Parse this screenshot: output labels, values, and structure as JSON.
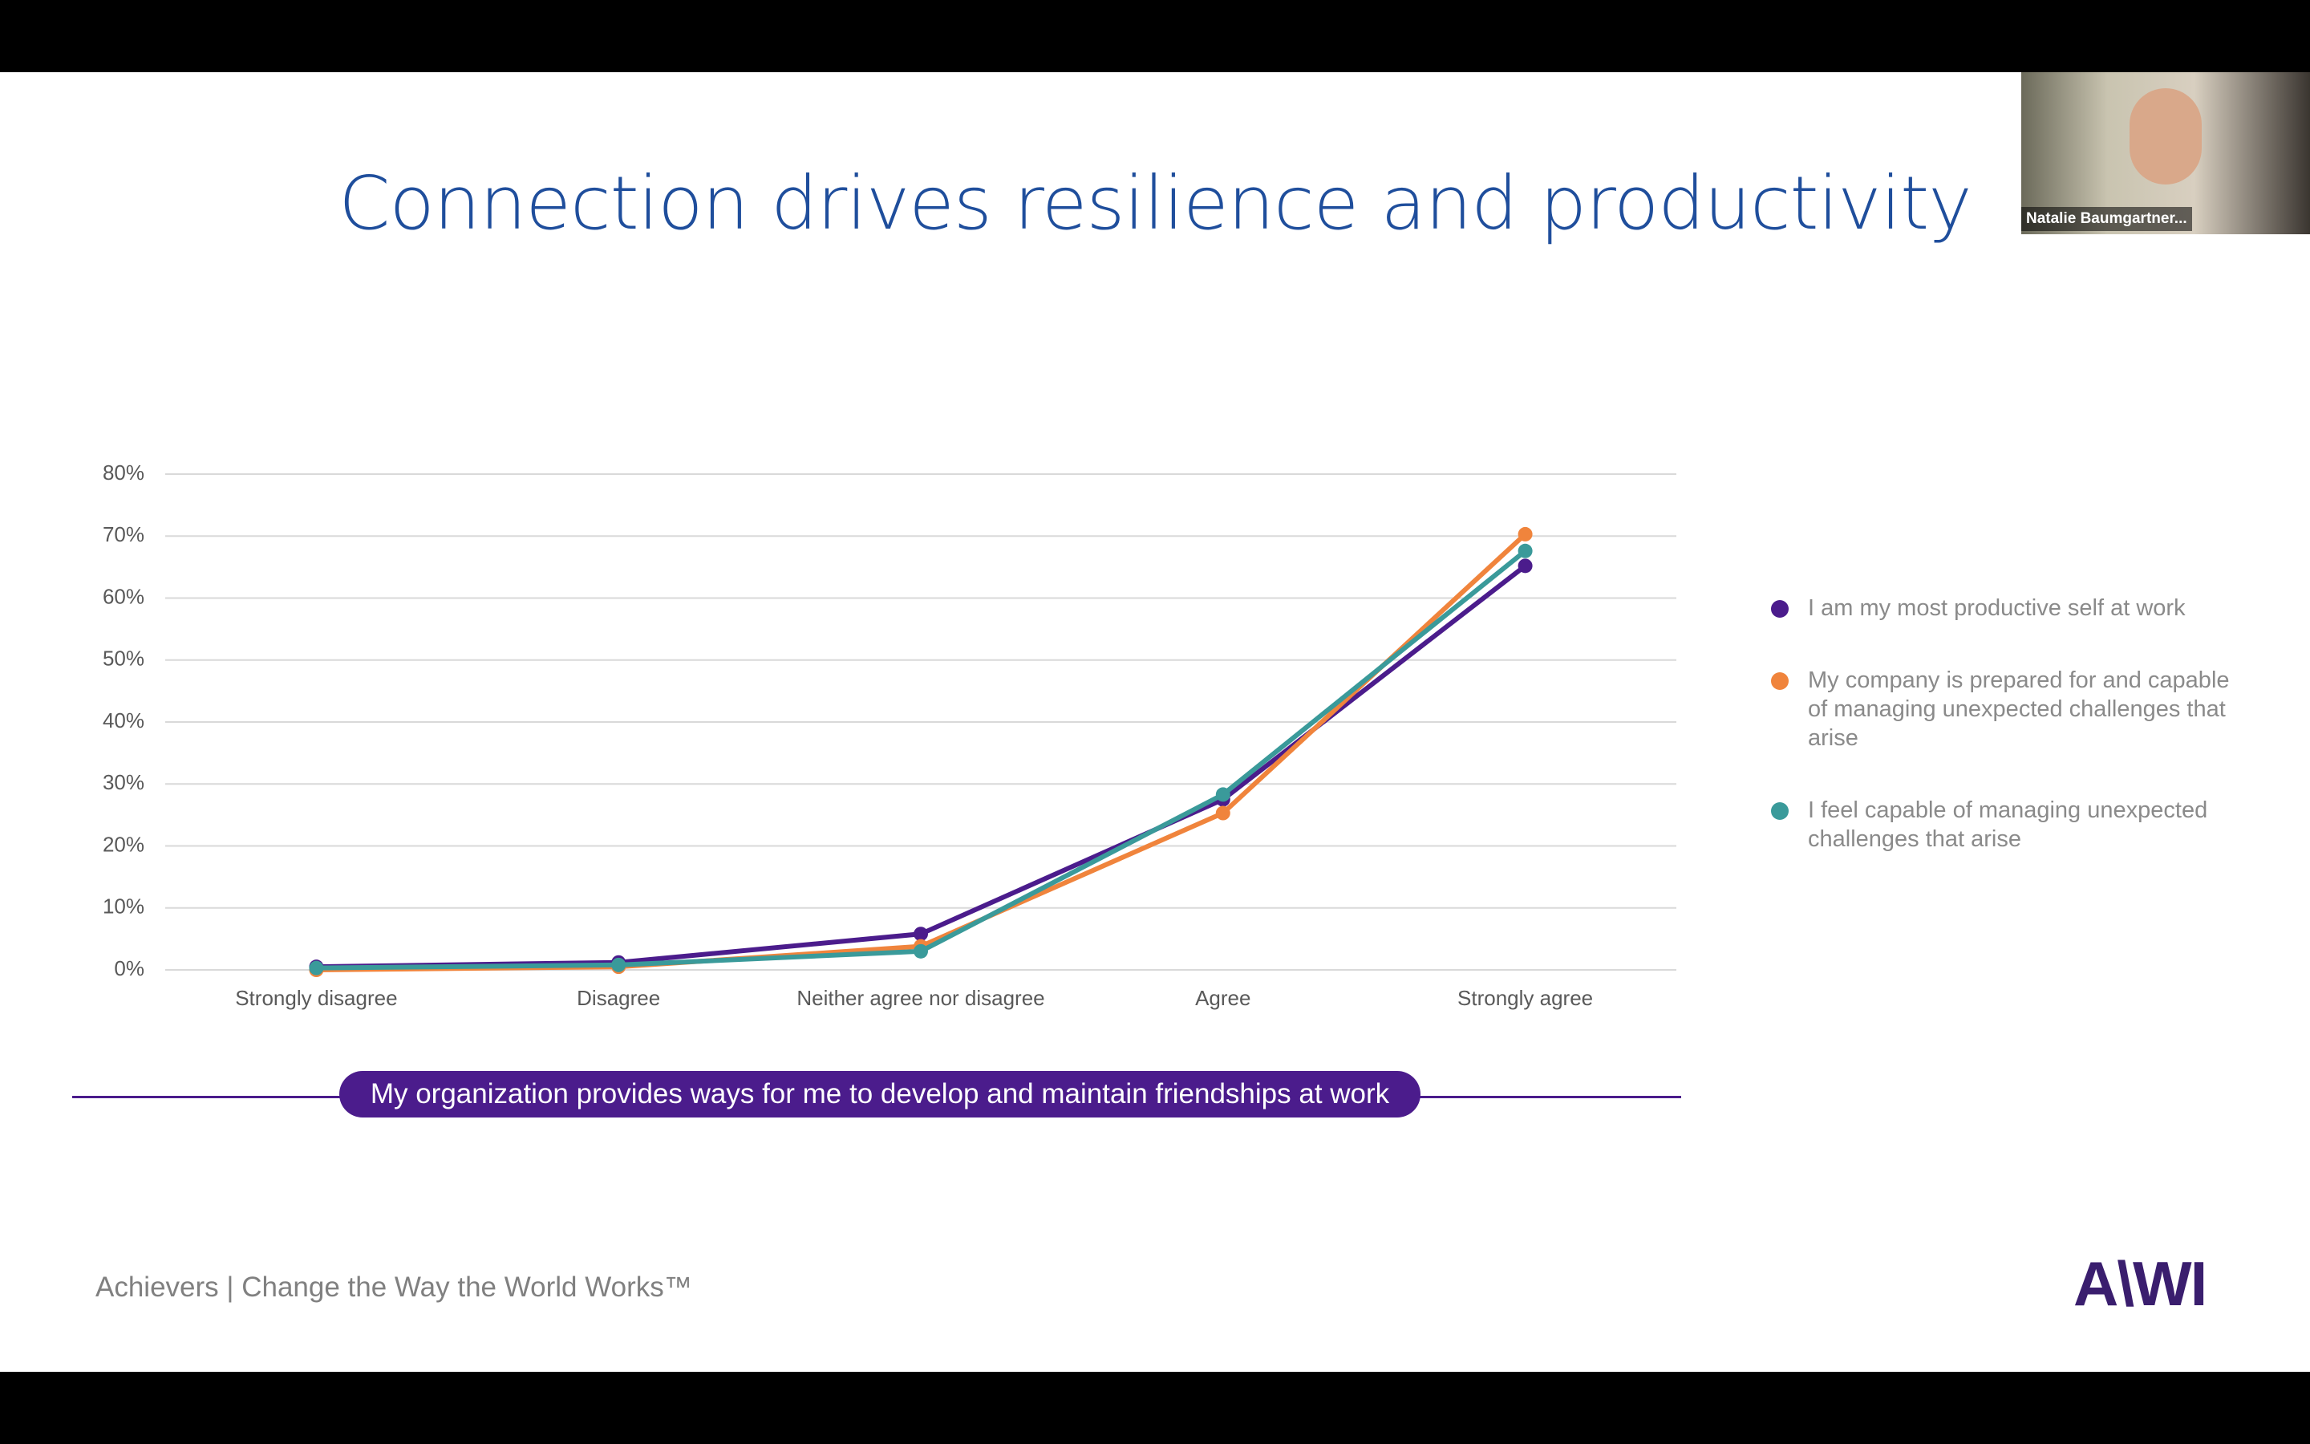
{
  "slide": {
    "title": "Connection drives resilience and productivity",
    "footer": "Achievers | Change the Way the World Works™",
    "logo": "A\\WI",
    "banner": "My organization provides ways for me to develop and maintain friendships at work",
    "webcam_name": "Natalie Baumgartner..."
  },
  "chart_data": {
    "type": "line",
    "categories": [
      "Strongly disagree",
      "Disagree",
      "Neither agree nor disagree",
      "Agree",
      "Strongly agree"
    ],
    "series": [
      {
        "name": "I am my most productive self at work",
        "color": "#4b1c8c",
        "values": [
          0.5,
          1.2,
          5.8,
          27.5,
          65.2
        ]
      },
      {
        "name": "My company is prepared for and capable of managing unexpected challenges that arise",
        "color": "#f0843c",
        "values": [
          0,
          0.5,
          3.8,
          25.3,
          70.3
        ]
      },
      {
        "name": "I feel capable of managing unexpected challenges that arise",
        "color": "#3a9a9a",
        "values": [
          0.3,
          0.8,
          3.0,
          28.3,
          67.6
        ]
      }
    ],
    "ylim": [
      0,
      80
    ],
    "yticks": [
      {
        "value": 0,
        "label": "0%"
      },
      {
        "value": 10,
        "label": "10%"
      },
      {
        "value": 20,
        "label": "20%"
      },
      {
        "value": 30,
        "label": "30%"
      },
      {
        "value": 40,
        "label": "40%"
      },
      {
        "value": 50,
        "label": "50%"
      },
      {
        "value": 60,
        "label": "60%"
      },
      {
        "value": 70,
        "label": "70%"
      },
      {
        "value": 80,
        "label": "80%"
      }
    ],
    "grid": true,
    "legend": "right"
  }
}
